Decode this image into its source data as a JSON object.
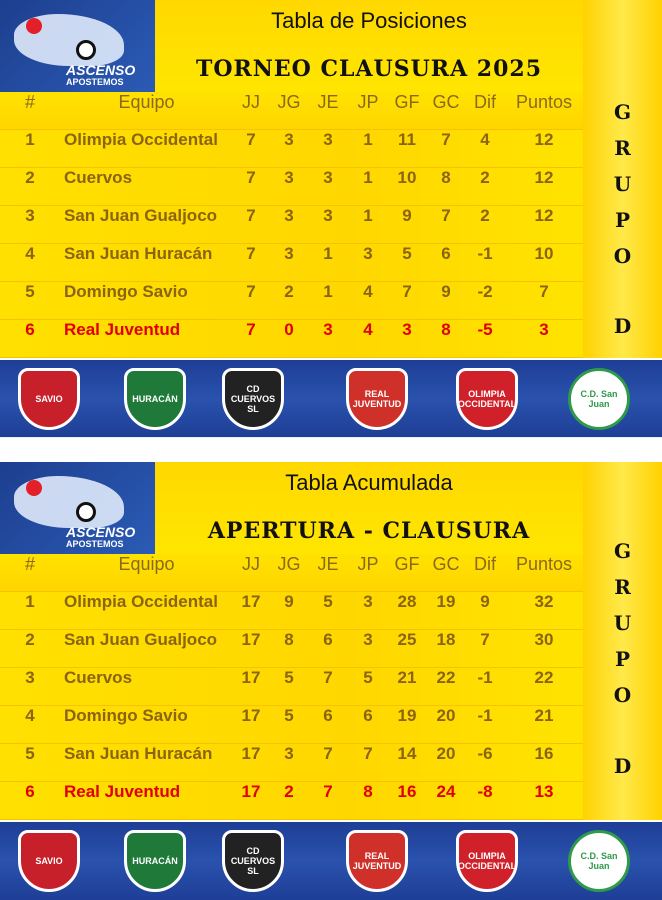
{
  "brand": {
    "line1": "ASCENSO",
    "line2": "APOSTEMOS"
  },
  "columns": [
    "#",
    "Equipo",
    "JJ",
    "JG",
    "JE",
    "JP",
    "GF",
    "GC",
    "Dif",
    "Puntos"
  ],
  "group_letters": [
    "G",
    "R",
    "U",
    "P",
    "O",
    "D"
  ],
  "tables": [
    {
      "title": "Tabla de Posiciones",
      "subtitle": "TORNEO CLAUSURA 2025",
      "rows": [
        [
          "1",
          "Olimpia Occidental",
          "7",
          "3",
          "3",
          "1",
          "11",
          "7",
          "4",
          "12"
        ],
        [
          "2",
          "Cuervos",
          "7",
          "3",
          "3",
          "1",
          "10",
          "8",
          "2",
          "12"
        ],
        [
          "3",
          "San Juan Gualjoco",
          "7",
          "3",
          "3",
          "1",
          "9",
          "7",
          "2",
          "12"
        ],
        [
          "4",
          "San Juan Huracán",
          "7",
          "3",
          "1",
          "3",
          "5",
          "6",
          "-1",
          "10"
        ],
        [
          "5",
          "Domingo Savio",
          "7",
          "2",
          "1",
          "4",
          "7",
          "9",
          "-2",
          "7"
        ],
        [
          "6",
          "Real Juventud",
          "7",
          "0",
          "3",
          "4",
          "3",
          "8",
          "-5",
          "3"
        ]
      ]
    },
    {
      "title": "Tabla Acumulada",
      "subtitle": "APERTURA - CLAUSURA",
      "rows": [
        [
          "1",
          "Olimpia Occidental",
          "17",
          "9",
          "5",
          "3",
          "28",
          "19",
          "9",
          "32"
        ],
        [
          "2",
          "San Juan Gualjoco",
          "17",
          "8",
          "6",
          "3",
          "25",
          "18",
          "7",
          "30"
        ],
        [
          "3",
          "Cuervos",
          "17",
          "5",
          "7",
          "5",
          "21",
          "22",
          "-1",
          "22"
        ],
        [
          "4",
          "Domingo Savio",
          "17",
          "5",
          "6",
          "6",
          "19",
          "20",
          "-1",
          "21"
        ],
        [
          "5",
          "San Juan Huracán",
          "17",
          "3",
          "7",
          "7",
          "14",
          "20",
          "-6",
          "16"
        ],
        [
          "6",
          "Real Juventud",
          "17",
          "2",
          "7",
          "8",
          "16",
          "24",
          "-8",
          "13"
        ]
      ]
    }
  ],
  "crests": [
    {
      "label": "SAVIO",
      "color": "#c8202a"
    },
    {
      "label": "HURACÁN",
      "color": "#1f7a3a"
    },
    {
      "label": "CD CUERVOS SL",
      "color": "#222222"
    },
    {
      "label": "REAL JUVENTUD",
      "color": "#d0302a"
    },
    {
      "label": "OLIMPIA OCCIDENTAL",
      "color": "#d0202a"
    },
    {
      "label": "C.D. San Juan",
      "color": "#2e9a4a"
    }
  ],
  "colors": {
    "yellow": "#ffdc00",
    "blue": "#2a52ad",
    "text": "#8a6410",
    "last_place": "#e00000"
  }
}
